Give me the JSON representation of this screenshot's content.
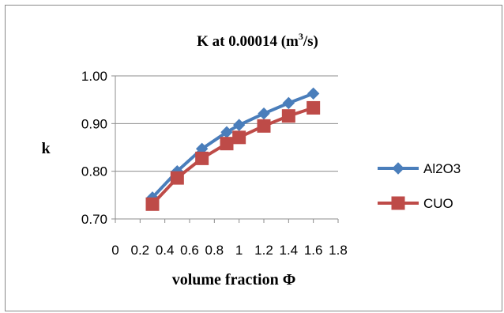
{
  "chart_data": {
    "type": "line",
    "title": "K at 0.00014 (m³/s)",
    "title_parts": {
      "main": "K at 0.00014 (m",
      "sup": "3",
      "tail": "/s)"
    },
    "xlabel": "volume fraction Φ",
    "ylabel": "k",
    "xlim": [
      0,
      1.8
    ],
    "ylim": [
      0.7,
      1.0
    ],
    "x_ticks": [
      {
        "value": 0,
        "label": "0"
      },
      {
        "value": 0.2,
        "label": "0.2"
      },
      {
        "value": 0.4,
        "label": "0.4"
      },
      {
        "value": 0.6,
        "label": "0.6"
      },
      {
        "value": 0.8,
        "label": "0.8"
      },
      {
        "value": 1.0,
        "label": "1"
      },
      {
        "value": 1.2,
        "label": "1.2"
      },
      {
        "value": 1.4,
        "label": "1.4"
      },
      {
        "value": 1.6,
        "label": "1.6"
      },
      {
        "value": 1.8,
        "label": "1.8"
      }
    ],
    "y_ticks": [
      {
        "value": 0.7,
        "label": "0.70"
      },
      {
        "value": 0.8,
        "label": "0.80"
      },
      {
        "value": 0.9,
        "label": "0.90"
      },
      {
        "value": 1.0,
        "label": "1.00"
      }
    ],
    "grid": {
      "horizontal": true,
      "vertical": false
    },
    "legend_position": "right",
    "series": [
      {
        "name": "Al2O3",
        "color": "#4A7EBB",
        "marker": "diamond",
        "x": [
          0.3,
          0.5,
          0.7,
          0.9,
          1.0,
          1.2,
          1.4,
          1.6
        ],
        "y": [
          0.745,
          0.8,
          0.847,
          0.882,
          0.897,
          0.921,
          0.943,
          0.963
        ]
      },
      {
        "name": "CUO",
        "color": "#BE4B48",
        "marker": "square",
        "x": [
          0.3,
          0.5,
          0.7,
          0.9,
          1.0,
          1.2,
          1.4,
          1.6
        ],
        "y": [
          0.731,
          0.786,
          0.827,
          0.858,
          0.871,
          0.895,
          0.916,
          0.933
        ]
      }
    ]
  }
}
